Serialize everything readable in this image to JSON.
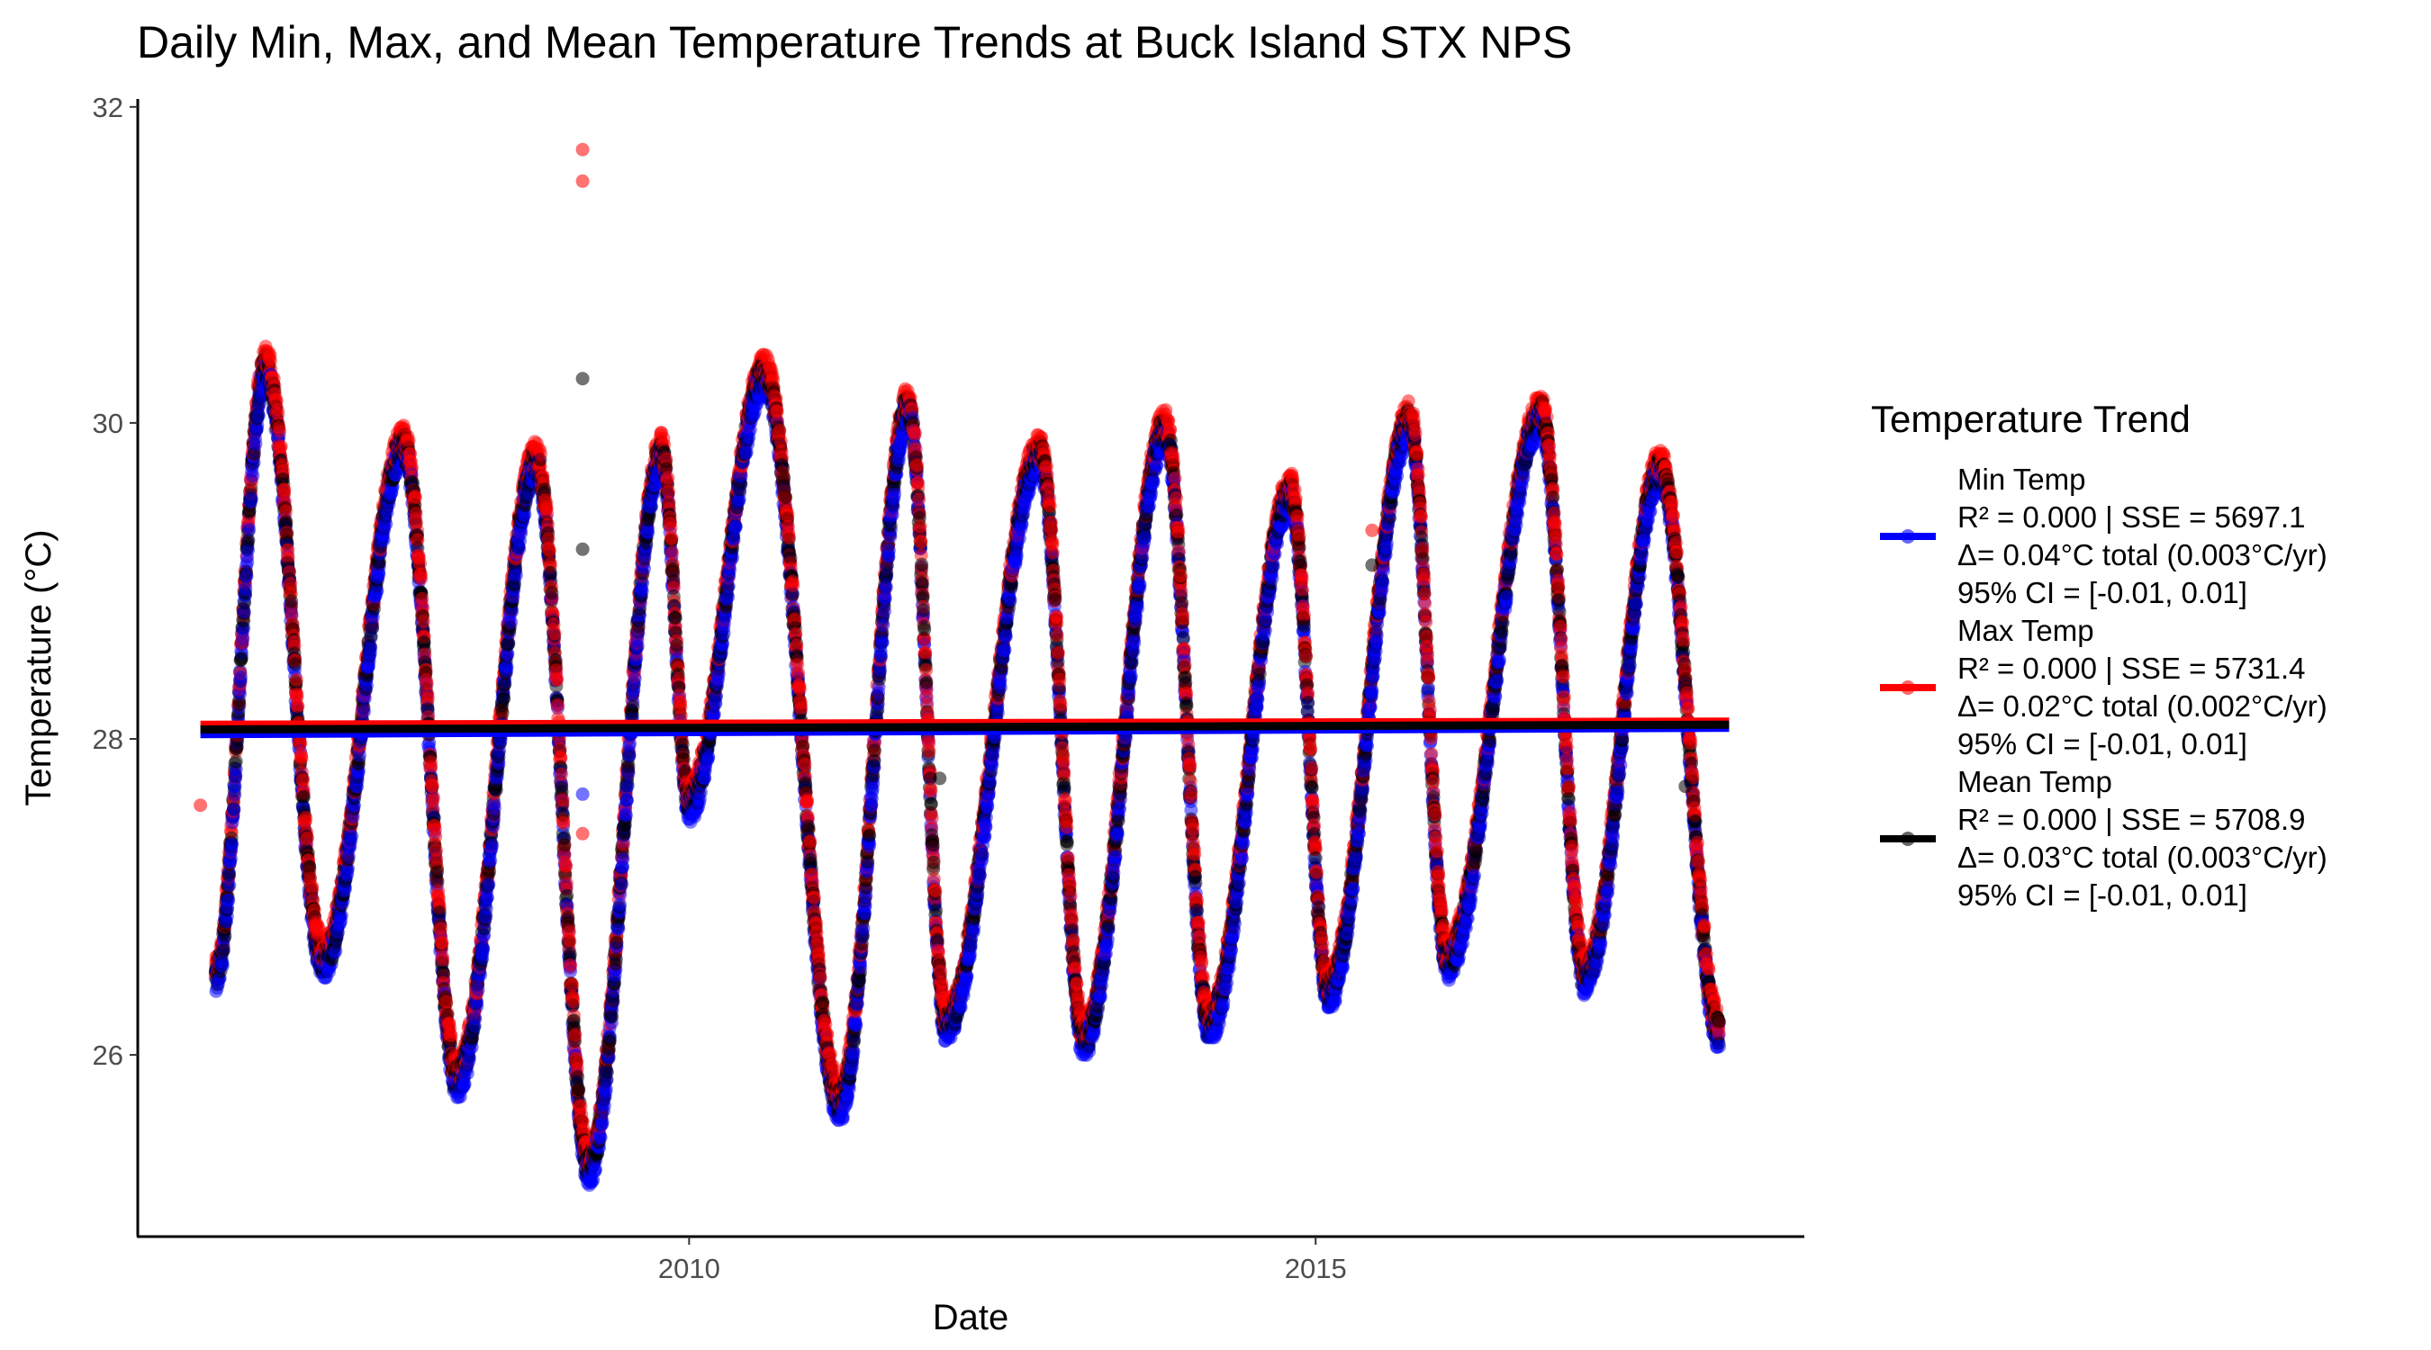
{
  "chart_data": {
    "type": "scatter",
    "title": "Daily Min, Max, and Mean Temperature Trends at Buck Island STX NPS",
    "xlabel": "Date",
    "ylabel": "Temperature (°C)",
    "xlim": [
      2005.6,
      2018.9
    ],
    "ylim": [
      24.85,
      32.05
    ],
    "x_ticks": [
      2010,
      2015
    ],
    "x_tick_labels": [
      "2010",
      "2015"
    ],
    "y_ticks": [
      26,
      28,
      30,
      32
    ],
    "y_tick_labels": [
      "26",
      "28",
      "30",
      "32"
    ],
    "grid": false,
    "legend_position": "right",
    "legend_title": "Temperature Trend",
    "seasonal_anchors": {
      "x": [
        2006.22,
        2006.62,
        2007.08,
        2007.72,
        2008.15,
        2008.78,
        2009.2,
        2009.78,
        2010.0,
        2010.6,
        2011.2,
        2011.75,
        2012.05,
        2012.8,
        2013.15,
        2013.8,
        2014.15,
        2014.8,
        2015.1,
        2015.75,
        2016.05,
        2016.8,
        2017.15,
        2017.75,
        2018.22
      ],
      "y": [
        26.5,
        30.35,
        26.6,
        29.85,
        25.85,
        29.75,
        25.3,
        29.8,
        27.6,
        30.3,
        25.7,
        30.1,
        26.2,
        29.8,
        26.1,
        29.95,
        26.2,
        29.55,
        26.4,
        30.0,
        26.6,
        30.05,
        26.5,
        29.7,
        26.15
      ]
    },
    "outliers": [
      {
        "series": "Max Temp",
        "x": 2009.15,
        "y": 31.73
      },
      {
        "series": "Max Temp",
        "x": 2009.15,
        "y": 31.53
      },
      {
        "series": "Mean Temp",
        "x": 2009.15,
        "y": 30.28
      },
      {
        "series": "Mean Temp",
        "x": 2009.15,
        "y": 29.2
      },
      {
        "series": "Min Temp",
        "x": 2009.15,
        "y": 27.65
      },
      {
        "series": "Max Temp",
        "x": 2009.15,
        "y": 27.4
      },
      {
        "series": "Max Temp",
        "x": 2006.1,
        "y": 27.58
      },
      {
        "series": "Max Temp",
        "x": 2015.45,
        "y": 29.32
      },
      {
        "series": "Mean Temp",
        "x": 2015.45,
        "y": 29.1
      },
      {
        "series": "Mean Temp",
        "x": 2012.0,
        "y": 27.75
      },
      {
        "series": "Mean Temp",
        "x": 2017.95,
        "y": 27.7
      }
    ],
    "series": [
      {
        "name": "Min Temp",
        "color": "#0000ff",
        "stats": "R² = 0.000 | SSE = 5697.1",
        "delta": "Δ= 0.04°C total (0.003°C/yr)",
        "ci": "95% CI = [-0.01, 0.01]",
        "trend": {
          "x": [
            2006.1,
            2018.3
          ],
          "y": [
            28.03,
            28.07
          ]
        }
      },
      {
        "name": "Max Temp",
        "color": "#ff0000",
        "stats": "R² = 0.000 | SSE = 5731.4",
        "delta": "Δ= 0.02°C total (0.002°C/yr)",
        "ci": "95% CI = [-0.01, 0.01]",
        "trend": {
          "x": [
            2006.1,
            2018.3
          ],
          "y": [
            28.09,
            28.11
          ]
        }
      },
      {
        "name": "Mean Temp",
        "color": "#000000",
        "stats": "R² = 0.000 | SSE = 5708.9",
        "delta": "Δ= 0.03°C total (0.003°C/yr)",
        "ci": "95% CI = [-0.01, 0.01]",
        "trend": {
          "x": [
            2006.1,
            2018.3
          ],
          "y": [
            28.06,
            28.09
          ]
        }
      }
    ]
  }
}
